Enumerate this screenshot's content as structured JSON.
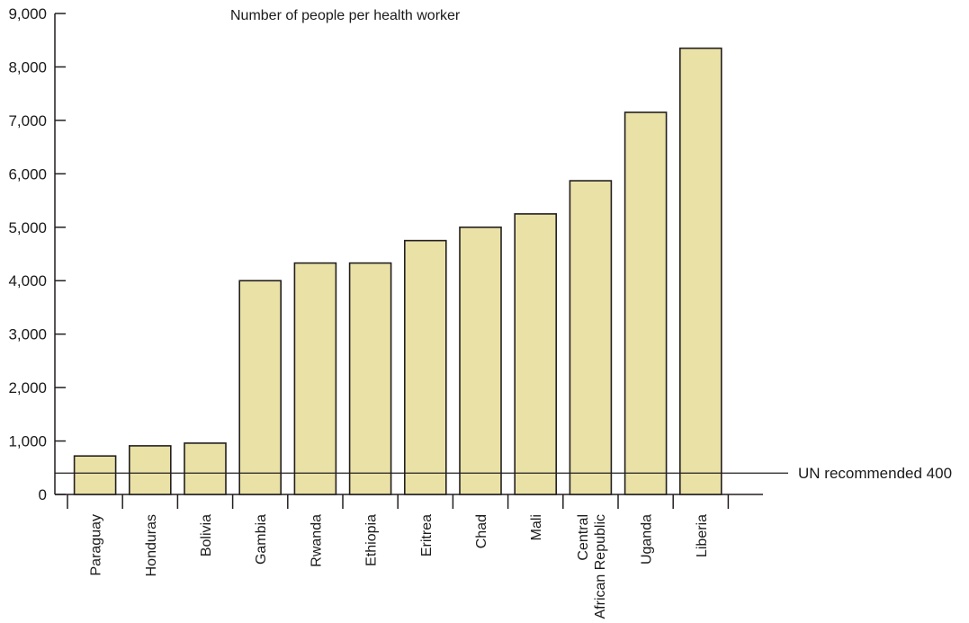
{
  "chart_data": {
    "type": "bar",
    "title": "Number of people per health worker",
    "xlabel": "",
    "ylabel": "",
    "categories": [
      "Paraguay",
      "Honduras",
      "Bolivia",
      "Gambia",
      "Rwanda",
      "Ethiopia",
      "Eritrea",
      "Chad",
      "Mali",
      "Central African Republic",
      "Uganda",
      "Liberia"
    ],
    "category_label_lines": [
      [
        "Paraguay"
      ],
      [
        "Honduras"
      ],
      [
        "Bolivia"
      ],
      [
        "Gambia"
      ],
      [
        "Rwanda"
      ],
      [
        "Ethiopia"
      ],
      [
        "Eritrea"
      ],
      [
        "Chad"
      ],
      [
        "Mali"
      ],
      [
        "Central",
        "African Republic"
      ],
      [
        "Uganda"
      ],
      [
        "Liberia"
      ]
    ],
    "values": [
      720,
      910,
      960,
      4000,
      4330,
      4330,
      4750,
      5000,
      5250,
      5870,
      7150,
      8350
    ],
    "ylim": [
      0,
      9000
    ],
    "yticks": [
      0,
      1000,
      2000,
      3000,
      4000,
      5000,
      6000,
      7000,
      8000,
      9000
    ],
    "ytick_labels": [
      "0",
      "1,000",
      "2,000",
      "3,000",
      "4,000",
      "5,000",
      "6,000",
      "7,000",
      "8,000",
      "9,000"
    ],
    "grid": false,
    "legend": "none",
    "bar_fill": "#e9e1a6",
    "bar_stroke": "#231f20",
    "reference_line": {
      "value": 400,
      "label": "UN recommended 400"
    }
  }
}
